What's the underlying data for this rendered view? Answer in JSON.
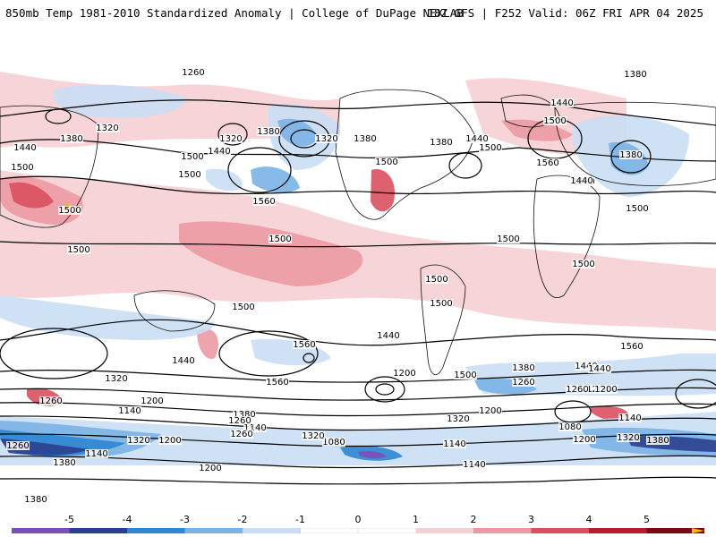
{
  "title": {
    "left": "850mb Temp 1981-2010 Standardized Anomaly | College of DuPage NEXLAB",
    "right": "18Z GFS | F252 Valid: 06Z FRI APR 04 2025"
  },
  "colors": {
    "neg5": "#7a4fb8",
    "neg4": "#2b3f8f",
    "neg3": "#2f86d2",
    "neg2": "#7ab3e6",
    "neg1": "#c9def4",
    "zero": "#ffffff",
    "pos1": "#f6cfd3",
    "pos2": "#eb9aa3",
    "pos3": "#d9505e",
    "pos4": "#b51e2a",
    "pos5": "#7a0a12",
    "pos_ext": "#f5b800"
  },
  "colorbar": {
    "labels": [
      "-5",
      "-4",
      "-3",
      "-2",
      "-1",
      "0",
      "1",
      "2",
      "3",
      "4",
      "5"
    ]
  },
  "contour_labels": [
    {
      "text": "1260"
    },
    {
      "text": "1380"
    },
    {
      "text": "1320"
    },
    {
      "text": "1320"
    },
    {
      "text": "1380"
    },
    {
      "text": "1320"
    },
    {
      "text": "1500"
    },
    {
      "text": "1440"
    },
    {
      "text": "1440"
    },
    {
      "text": "1500"
    },
    {
      "text": "1500"
    },
    {
      "text": "1560"
    },
    {
      "text": "1500"
    },
    {
      "text": "1500"
    },
    {
      "text": "1500"
    },
    {
      "text": "1500"
    },
    {
      "text": "1500"
    },
    {
      "text": "1380"
    },
    {
      "text": "1380"
    },
    {
      "text": "1440"
    },
    {
      "text": "1500"
    },
    {
      "text": "1440"
    },
    {
      "text": "1500"
    },
    {
      "text": "1500"
    },
    {
      "text": "1500"
    },
    {
      "text": "1560"
    },
    {
      "text": "1380"
    },
    {
      "text": "1440"
    },
    {
      "text": "1560"
    },
    {
      "text": "1500"
    },
    {
      "text": "1380"
    },
    {
      "text": "1500"
    },
    {
      "text": "1500"
    },
    {
      "text": "1440"
    },
    {
      "text": "1560"
    },
    {
      "text": "1440"
    },
    {
      "text": "1560"
    },
    {
      "text": "1200"
    },
    {
      "text": "1500"
    },
    {
      "text": "1500"
    },
    {
      "text": "1380"
    },
    {
      "text": "1260"
    },
    {
      "text": "1200"
    },
    {
      "text": "1440"
    },
    {
      "text": "1560"
    },
    {
      "text": "1320"
    },
    {
      "text": "1260"
    },
    {
      "text": "1140"
    },
    {
      "text": "1200"
    },
    {
      "text": "1080"
    },
    {
      "text": "1320"
    },
    {
      "text": "1380"
    },
    {
      "text": "1260"
    },
    {
      "text": "1200"
    },
    {
      "text": "1140"
    },
    {
      "text": "1140"
    },
    {
      "text": "1260"
    },
    {
      "text": "1320"
    },
    {
      "text": "1440"
    },
    {
      "text": "1200"
    },
    {
      "text": "1080"
    },
    {
      "text": "1140"
    },
    {
      "text": "1380"
    },
    {
      "text": "1200"
    },
    {
      "text": "1260"
    },
    {
      "text": "1200"
    },
    {
      "text": "1140"
    },
    {
      "text": "1320"
    },
    {
      "text": "1320"
    },
    {
      "text": "1380"
    },
    {
      "text": "1140"
    },
    {
      "text": "1260"
    },
    {
      "text": "1380"
    },
    {
      "text": "1200"
    }
  ]
}
